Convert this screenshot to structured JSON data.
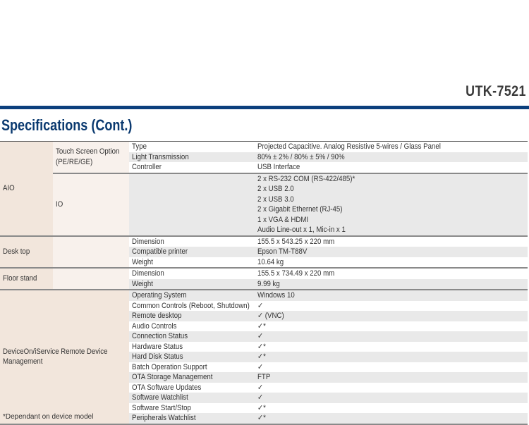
{
  "header": {
    "model": "UTK-7521",
    "title": "Specifications (Cont.)"
  },
  "colors": {
    "accent": "#0b3f7d",
    "category_bg": "#f2e6dc",
    "subcategory_bg": "#f8f1ec",
    "alt_row": "#e9e9e9"
  },
  "footnote": "*Dependant on device model",
  "groups": [
    {
      "category": "AIO",
      "subgroups": [
        {
          "name": "Touch Screen Option (PE/RE/GE)",
          "rows": [
            {
              "item": "Type",
              "value": "Projected Capacitive. Analog Resistive 5-wires / Glass Panel"
            },
            {
              "item": "Light Transmission",
              "value": "80% ± 2% / 80% ± 5% / 90%"
            },
            {
              "item": "Controller",
              "value": "USB Interface"
            }
          ]
        },
        {
          "name": "IO",
          "rows": [
            {
              "item": "",
              "value": [
                "2 x RS-232 COM (RS-422/485)*",
                "2 x USB 2.0",
                "2 x USB 3.0",
                "2 x Gigabit Ethernet (RJ-45)",
                "1 x VGA & HDMI",
                "Audio Line-out x 1, Mic-in x 1"
              ]
            }
          ]
        }
      ]
    },
    {
      "category": "Desk top",
      "subgroups": [
        {
          "name": "",
          "rows": [
            {
              "item": "Dimension",
              "value": "155.5 x 543.25 x 220 mm"
            },
            {
              "item": "Compatible printer",
              "value": "Epson TM-T88V"
            },
            {
              "item": "Weight",
              "value": "10.64 kg"
            }
          ]
        }
      ]
    },
    {
      "category": "Floor stand",
      "subgroups": [
        {
          "name": "",
          "rows": [
            {
              "item": "Dimension",
              "value": "155.5 x 734.49 x 220 mm"
            },
            {
              "item": "Weight",
              "value": "9.99 kg"
            }
          ]
        }
      ]
    },
    {
      "category": "DeviceOn/iService Remote Device Management",
      "subgroups": [
        {
          "name": "",
          "rows": [
            {
              "item": "Operating System",
              "value": "Windows 10"
            },
            {
              "item": "Common Controls (Reboot, Shutdown)",
              "value": "✓"
            },
            {
              "item": "Remote desktop",
              "value": "✓ (VNC)"
            },
            {
              "item": "Audio Controls",
              "value": "✓*"
            },
            {
              "item": "Connection Status",
              "value": "✓"
            },
            {
              "item": "Hardware Status",
              "value": "✓*"
            },
            {
              "item": "Hard Disk Status",
              "value": "✓*"
            },
            {
              "item": "Batch Operation Support",
              "value": "✓"
            },
            {
              "item": "OTA Storage Management",
              "value": "FTP"
            },
            {
              "item": "OTA Software Updates",
              "value": "✓"
            },
            {
              "item": "Software Watchlist",
              "value": "✓"
            },
            {
              "item": "Software Start/Stop",
              "value": "✓*"
            },
            {
              "item": "Peripherals Watchlist",
              "value": "✓*"
            }
          ]
        }
      ]
    }
  ]
}
